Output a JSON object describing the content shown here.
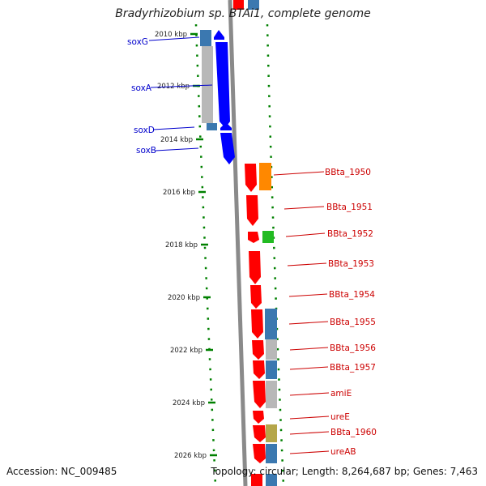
{
  "title": "Bradyrhizobium sp. BTAi1, complete genome",
  "accession": "Accession: NC_009485",
  "topology": "Topology: circular; Length: 8,264,687 bp; Genes: 7,463",
  "colors": {
    "forward_gene": "#ff0000",
    "sox_gene": "#0000ff",
    "backbone": "#808080",
    "tick": "#008000",
    "label_red": "#cc0000",
    "label_blue": "#0000cc",
    "cds_blue": "#3b78b0",
    "cds_gray": "#b8b8b8",
    "cds_orange": "#ff8800",
    "cds_green": "#22bb22",
    "cds_olive": "#b5a64a"
  },
  "ticks": [
    {
      "label": "2010 kbp",
      "kbp": 2010
    },
    {
      "label": "2012 kbp",
      "kbp": 2012
    },
    {
      "label": "2014 kbp",
      "kbp": 2014
    },
    {
      "label": "2016 kbp",
      "kbp": 2016
    },
    {
      "label": "2018 kbp",
      "kbp": 2018
    },
    {
      "label": "2020 kbp",
      "kbp": 2020
    },
    {
      "label": "2022 kbp",
      "kbp": 2022
    },
    {
      "label": "2024 kbp",
      "kbp": 2024
    },
    {
      "label": "2026 kbp",
      "kbp": 2026
    }
  ],
  "left_labels": [
    "soxG",
    "soxA",
    "soxD",
    "soxB"
  ],
  "right_labels": [
    "BBta_1950",
    "BBta_1951",
    "BBta_1952",
    "BBta_1953",
    "BBta_1954",
    "BBta_1955",
    "BBta_1956",
    "BBta_1957",
    "amiE",
    "ureE",
    "BBta_1960",
    "ureAB"
  ]
}
